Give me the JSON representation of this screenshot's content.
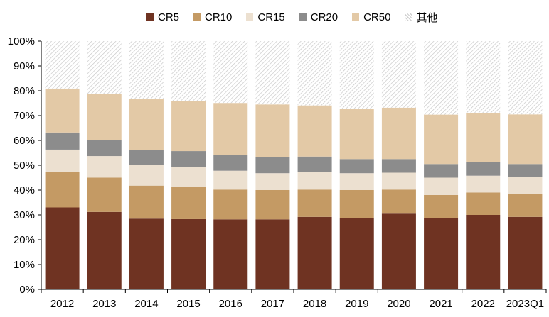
{
  "chart_data": {
    "type": "bar",
    "stacked": true,
    "title": "",
    "xlabel": "",
    "ylabel": "",
    "ylim": [
      0,
      100
    ],
    "yticks": [
      "0%",
      "10%",
      "20%",
      "30%",
      "40%",
      "50%",
      "60%",
      "70%",
      "80%",
      "90%",
      "100%"
    ],
    "grid": false,
    "legend_position": "top",
    "categories": [
      "2012",
      "2013",
      "2014",
      "2015",
      "2016",
      "2017",
      "2018",
      "2019",
      "2020",
      "2021",
      "2022",
      "2023Q1"
    ],
    "series": [
      {
        "name": "CR5",
        "color": "#6f3322",
        "values": [
          33.0,
          31.2,
          28.5,
          28.3,
          28.2,
          28.2,
          29.2,
          28.8,
          30.5,
          28.8,
          30.0,
          29.2
        ]
      },
      {
        "name": "CR10",
        "color": "#c49a64",
        "values": [
          14.3,
          13.8,
          13.3,
          13.0,
          12.0,
          11.8,
          11.0,
          11.2,
          9.7,
          9.2,
          9.0,
          9.3
        ]
      },
      {
        "name": "CR15",
        "color": "#ece0d0",
        "values": [
          9.0,
          8.7,
          8.2,
          8.0,
          7.6,
          6.8,
          7.2,
          6.8,
          6.8,
          7.0,
          6.8,
          6.8
        ]
      },
      {
        "name": "CR20",
        "color": "#8c8c8c",
        "values": [
          6.9,
          6.3,
          6.2,
          6.4,
          6.3,
          6.4,
          6.1,
          5.7,
          5.5,
          5.5,
          5.4,
          5.2
        ]
      },
      {
        "name": "CR50",
        "color": "#e3c9a6",
        "values": [
          17.7,
          18.8,
          20.4,
          20.1,
          21.0,
          21.3,
          20.6,
          20.3,
          20.7,
          19.9,
          19.8,
          20.0
        ]
      },
      {
        "name": "其他",
        "color": "#e6e6e6",
        "pattern": "diagonal-hatch",
        "values": [
          19.1,
          21.2,
          23.4,
          24.2,
          24.9,
          25.5,
          25.9,
          27.2,
          26.8,
          29.6,
          29.0,
          29.5
        ]
      }
    ]
  }
}
